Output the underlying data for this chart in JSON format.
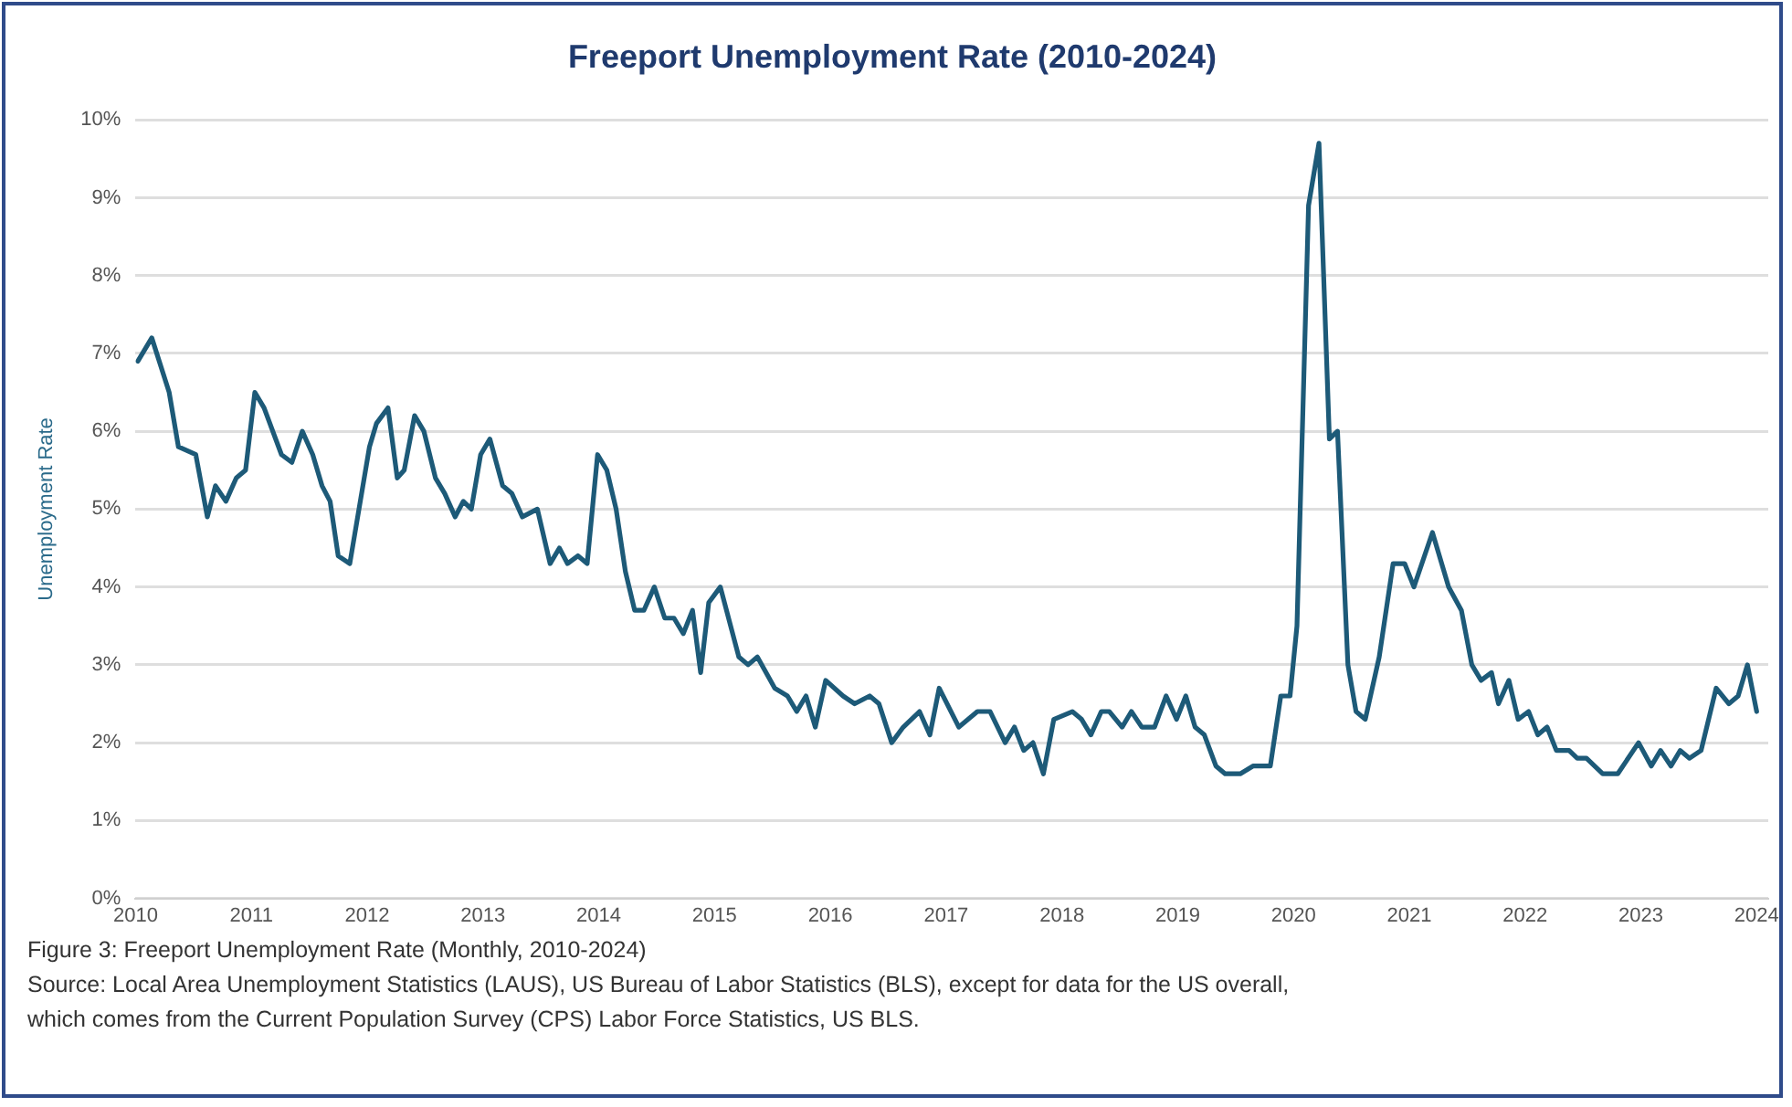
{
  "chart_data": {
    "type": "line",
    "title": "Freeport Unemployment Rate (2010-2024)",
    "ylabel": "Unemployment Rate",
    "x": [
      2010.02,
      2010.14,
      2010.29,
      2010.37,
      2010.52,
      2010.62,
      2010.69,
      2010.78,
      2010.87,
      2010.95,
      2011.03,
      2011.11,
      2011.26,
      2011.35,
      2011.44,
      2011.53,
      2011.61,
      2011.68,
      2011.75,
      2011.85,
      2012.02,
      2012.08,
      2012.18,
      2012.26,
      2012.32,
      2012.41,
      2012.49,
      2012.59,
      2012.67,
      2012.76,
      2012.83,
      2012.9,
      2012.98,
      2013.06,
      2013.17,
      2013.25,
      2013.34,
      2013.47,
      2013.58,
      2013.66,
      2013.73,
      2013.82,
      2013.9,
      2013.99,
      2014.07,
      2014.15,
      2014.23,
      2014.31,
      2014.39,
      2014.48,
      2014.57,
      2014.65,
      2014.73,
      2014.81,
      2014.88,
      2014.95,
      2015.05,
      2015.21,
      2015.29,
      2015.37,
      2015.52,
      2015.63,
      2015.71,
      2015.79,
      2015.87,
      2015.96,
      2016.11,
      2016.21,
      2016.34,
      2016.42,
      2016.53,
      2016.63,
      2016.77,
      2016.86,
      2016.94,
      2017.11,
      2017.27,
      2017.38,
      2017.51,
      2017.59,
      2017.67,
      2017.75,
      2017.84,
      2017.93,
      2018.09,
      2018.17,
      2018.25,
      2018.34,
      2018.41,
      2018.52,
      2018.6,
      2018.69,
      2018.8,
      2018.9,
      2018.99,
      2019.07,
      2019.15,
      2019.23,
      2019.33,
      2019.41,
      2019.54,
      2019.65,
      2019.8,
      2019.89,
      2019.97,
      2020.03,
      2020.13,
      2020.22,
      2020.31,
      2020.38,
      2020.47,
      2020.54,
      2020.62,
      2020.74,
      2020.86,
      2020.96,
      2021.04,
      2021.2,
      2021.34,
      2021.45,
      2021.54,
      2021.62,
      2021.71,
      2021.77,
      2021.86,
      2021.94,
      2022.03,
      2022.11,
      2022.19,
      2022.27,
      2022.38,
      2022.45,
      2022.53,
      2022.67,
      2022.8,
      2022.98,
      2023.09,
      2023.17,
      2023.26,
      2023.34,
      2023.42,
      2023.52,
      2023.65,
      2023.76,
      2023.84,
      2023.92,
      2024.0
    ],
    "series": [
      {
        "color": "#1d5a78",
        "values": [
          6.9,
          7.2,
          6.5,
          5.8,
          5.7,
          4.9,
          5.3,
          5.1,
          5.4,
          5.5,
          6.5,
          6.3,
          5.7,
          5.6,
          6.0,
          5.7,
          5.3,
          5.1,
          4.4,
          4.3,
          5.8,
          6.1,
          6.3,
          5.4,
          5.5,
          6.2,
          6.0,
          5.4,
          5.2,
          4.9,
          5.1,
          5.0,
          5.7,
          5.9,
          5.3,
          5.2,
          4.9,
          5.0,
          4.3,
          4.5,
          4.3,
          4.4,
          4.3,
          5.7,
          5.5,
          5.0,
          4.2,
          3.7,
          3.7,
          4.0,
          3.6,
          3.6,
          3.4,
          3.7,
          2.9,
          3.8,
          4.0,
          3.1,
          3.0,
          3.1,
          2.7,
          2.6,
          2.4,
          2.6,
          2.2,
          2.8,
          2.6,
          2.5,
          2.6,
          2.5,
          2.0,
          2.2,
          2.4,
          2.1,
          2.7,
          2.2,
          2.4,
          2.4,
          2.0,
          2.2,
          1.9,
          2.0,
          1.6,
          2.3,
          2.4,
          2.3,
          2.1,
          2.4,
          2.4,
          2.2,
          2.4,
          2.2,
          2.2,
          2.6,
          2.3,
          2.6,
          2.2,
          2.1,
          1.7,
          1.6,
          1.6,
          1.7,
          1.7,
          2.6,
          2.6,
          3.5,
          8.9,
          9.7,
          5.9,
          6.0,
          3.0,
          2.4,
          2.3,
          3.1,
          4.3,
          4.3,
          4.0,
          4.7,
          4.0,
          3.7,
          3.0,
          2.8,
          2.9,
          2.5,
          2.8,
          2.3,
          2.4,
          2.1,
          2.2,
          1.9,
          1.9,
          1.8,
          1.8,
          1.6,
          1.6,
          2.0,
          1.7,
          1.9,
          1.7,
          1.9,
          1.8,
          1.9,
          2.7,
          2.5,
          2.6,
          3.0,
          2.4
        ]
      }
    ],
    "xlim": [
      2010,
      2024.1
    ],
    "xticks": [
      2010,
      2011,
      2012,
      2013,
      2014,
      2015,
      2016,
      2017,
      2018,
      2019,
      2020,
      2021,
      2022,
      2023,
      2024
    ],
    "ylim": [
      0,
      10
    ],
    "yticks": [
      {
        "value": 0,
        "label": "0%"
      },
      {
        "value": 1,
        "label": "1%"
      },
      {
        "value": 2,
        "label": "2%"
      },
      {
        "value": 3,
        "label": "3%"
      },
      {
        "value": 4,
        "label": "4%"
      },
      {
        "value": 5,
        "label": "5%"
      },
      {
        "value": 6,
        "label": "6%"
      },
      {
        "value": 7,
        "label": "7%"
      },
      {
        "value": 8,
        "label": "8%"
      },
      {
        "value": 9,
        "label": "9%"
      },
      {
        "value": 10,
        "label": "10%"
      }
    ],
    "grid": "y",
    "legend": false,
    "marker": "none",
    "line_style": "solid",
    "annotations": [
      "Figure  3: Freeport Unemployment Rate (Monthly, 2010-2024)",
      "Source: Local Area Unemployment Statistics (LAUS), US Bureau of Labor Statistics (BLS), except for data for the US overall,",
      "which comes from the Current Population Survey (CPS) Labor Force Statistics,  US BLS."
    ]
  }
}
